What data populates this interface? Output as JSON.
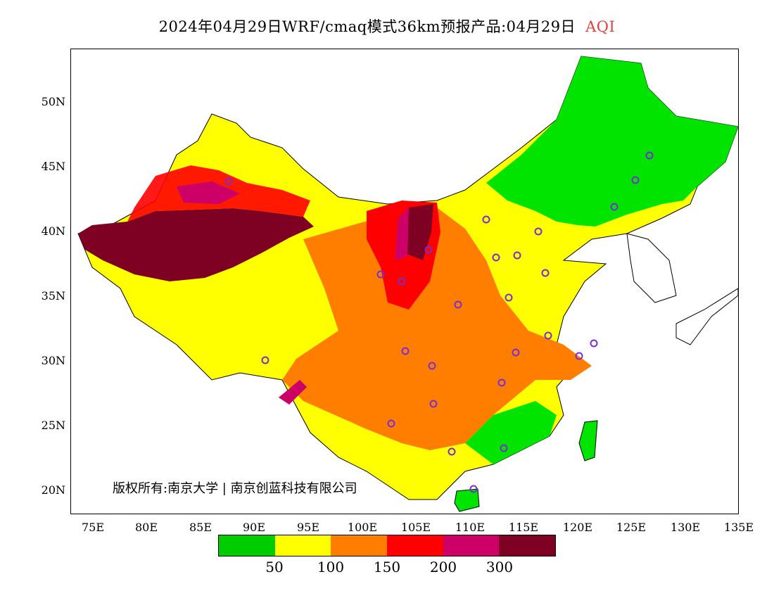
{
  "title": {
    "main": "2024年04月29日WRF/cmaq模式36km预报产品:04月29日",
    "variable": "AQI"
  },
  "y_axis": [
    "50N",
    "45N",
    "40N",
    "35N",
    "30N",
    "25N",
    "20N"
  ],
  "x_axis": [
    "75E",
    "80E",
    "85E",
    "90E",
    "95E",
    "100E",
    "105E",
    "110E",
    "115E",
    "120E",
    "125E",
    "130E",
    "135E"
  ],
  "legend": {
    "colors": [
      "#00cc00",
      "#ffff00",
      "#ff7e00",
      "#ff0000",
      "#cc0066",
      "#7e0023"
    ],
    "labels": [
      "50",
      "100",
      "150",
      "200",
      "300"
    ]
  },
  "copyright": "版权所有:南京大学 | 南京创蓝科技有限公司"
}
